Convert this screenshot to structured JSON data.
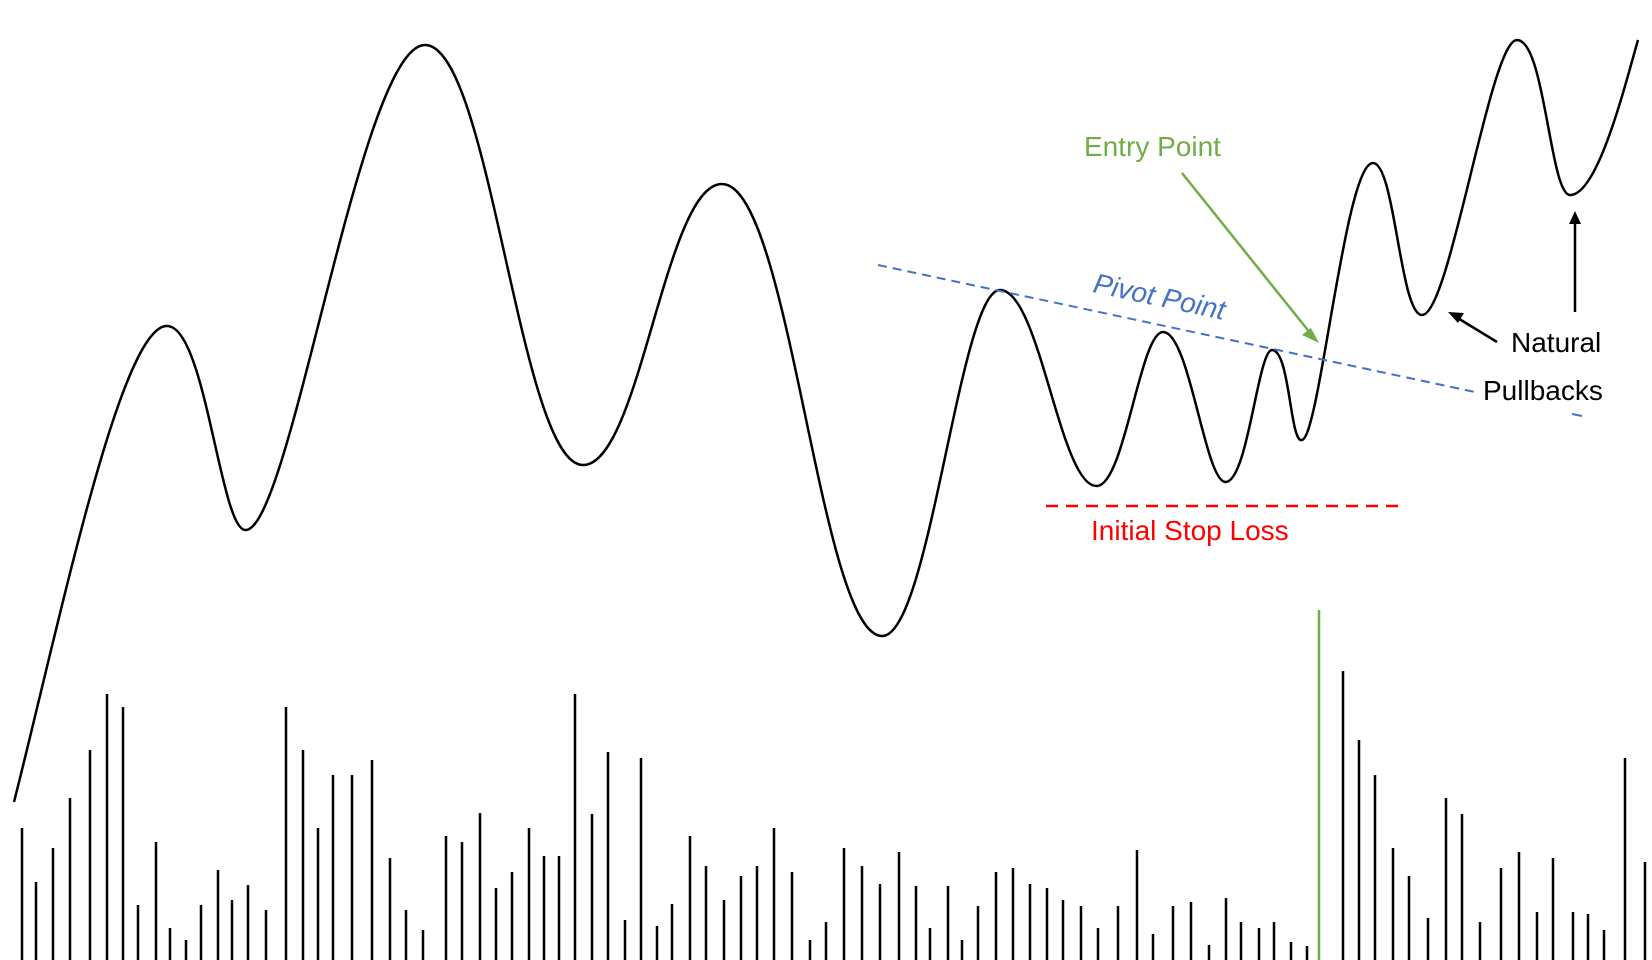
{
  "diagram": {
    "labels": {
      "entry_point": "Entry Point",
      "pivot_point": "Pivot Point",
      "initial_stop_loss": "Initial Stop Loss",
      "natural": "Natural",
      "pullbacks": "Pullbacks"
    },
    "colors": {
      "price_line": "#000000",
      "entry": "#70ad47",
      "pivot": "#4472c4",
      "stop_loss": "#ff0000",
      "volume": "#000000",
      "breakout_volume": "#70ad47"
    }
  }
}
